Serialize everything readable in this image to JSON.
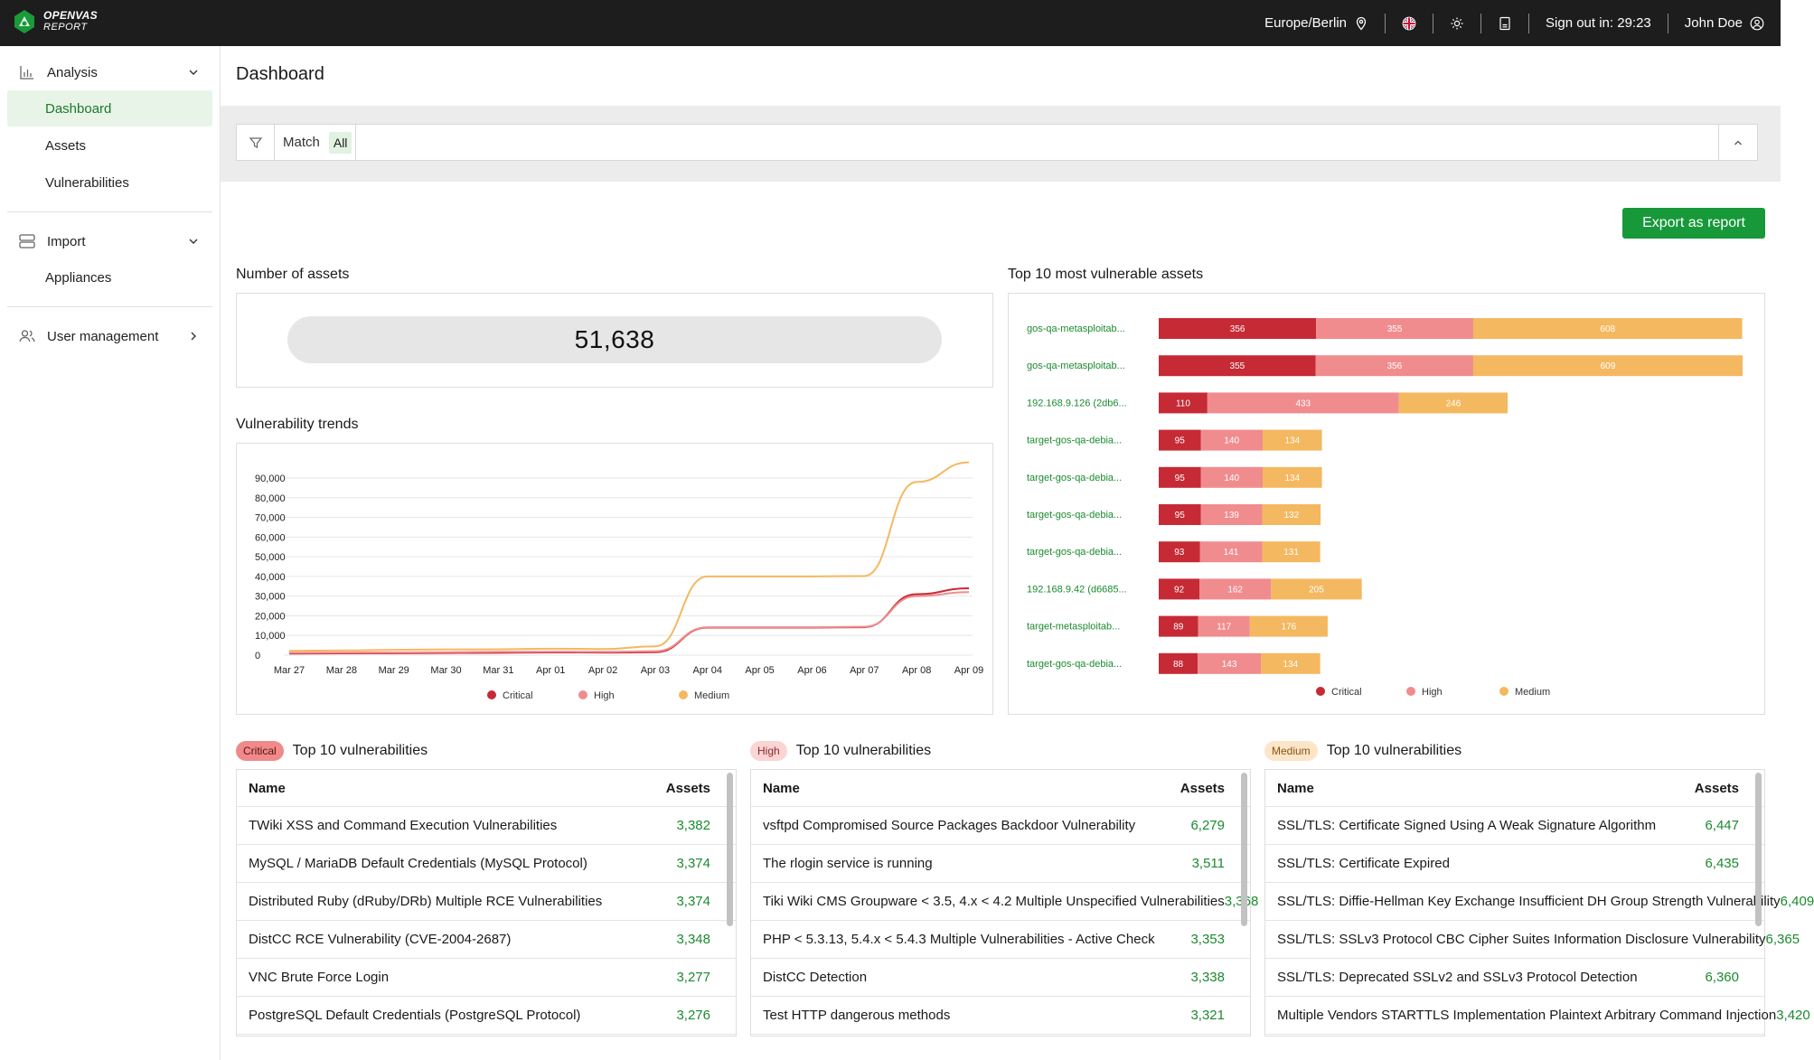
{
  "brand": {
    "line1": "OPENVAS",
    "line2": "REPORT"
  },
  "topbar": {
    "timezone": "Europe/Berlin",
    "signout": "Sign out in: 29:23",
    "user": "John Doe"
  },
  "sidebar": {
    "analysis": "Analysis",
    "dashboard": "Dashboard",
    "assets": "Assets",
    "vulnerabilities": "Vulnerabilities",
    "import": "Import",
    "appliances": "Appliances",
    "user_management": "User management"
  },
  "page": {
    "title": "Dashboard"
  },
  "filter": {
    "match_label": "Match",
    "match_value": "All"
  },
  "export_label": "Export as report",
  "assets_card": {
    "title": "Number of assets",
    "value": "51,638"
  },
  "colors": {
    "critical": "#c62a35",
    "high": "#f08c8e",
    "medium": "#f4b860",
    "accent": "#17993a"
  },
  "legend": {
    "critical": "Critical",
    "high": "High",
    "medium": "Medium"
  },
  "chart_data": [
    {
      "type": "line",
      "title": "Vulnerability trends",
      "x": [
        "Mar 27",
        "Mar 28",
        "Mar 29",
        "Mar 30",
        "Mar 31",
        "Apr 01",
        "Apr 02",
        "Apr 03",
        "Apr 04",
        "Apr 05",
        "Apr 06",
        "Apr 07",
        "Apr 08",
        "Apr 09"
      ],
      "yticks": [
        "0",
        "10,000",
        "20,000",
        "30,000",
        "40,000",
        "50,000",
        "60,000",
        "70,000",
        "80,000",
        "90,000"
      ],
      "ylim": [
        0,
        90000
      ],
      "series": [
        {
          "name": "Critical",
          "color": "#c62a35",
          "values": [
            800,
            900,
            1000,
            1100,
            1200,
            1400,
            1300,
            1500,
            14000,
            14000,
            14000,
            14200,
            31000,
            34000
          ]
        },
        {
          "name": "High",
          "color": "#f08c8e",
          "values": [
            1200,
            1300,
            1400,
            1500,
            1700,
            1800,
            1700,
            2000,
            14200,
            14200,
            14200,
            14400,
            30000,
            32000
          ]
        },
        {
          "name": "Medium",
          "color": "#f4b860",
          "values": [
            2200,
            2400,
            2700,
            2900,
            3000,
            3300,
            3100,
            4500,
            40000,
            40000,
            40000,
            40200,
            88000,
            98000
          ]
        }
      ]
    },
    {
      "type": "bar",
      "stacked": true,
      "orientation": "horizontal",
      "title": "Top 10 most vulnerable assets",
      "categories": [
        "gos-qa-metasploitab...",
        "gos-qa-metasploitab...",
        "192.168.9.126 (2db6...",
        "target-gos-qa-debia...",
        "target-gos-qa-debia...",
        "target-gos-qa-debia...",
        "target-gos-qa-debia...",
        "192.168.9.42 (d6685...",
        "target-metasploitab...",
        "target-gos-qa-debia..."
      ],
      "series": [
        {
          "name": "Critical",
          "color": "#c62a35",
          "values": [
            356,
            355,
            110,
            95,
            95,
            95,
            93,
            92,
            89,
            88
          ]
        },
        {
          "name": "High",
          "color": "#f08c8e",
          "values": [
            355,
            356,
            433,
            140,
            140,
            139,
            141,
            162,
            117,
            143
          ]
        },
        {
          "name": "Medium",
          "color": "#f4b860",
          "values": [
            608,
            609,
            246,
            134,
            134,
            132,
            131,
            205,
            176,
            134
          ]
        }
      ]
    }
  ],
  "tables": [
    {
      "badge": "Critical",
      "title": "Top 10 vulnerabilities",
      "col_name": "Name",
      "col_assets": "Assets",
      "rows": [
        {
          "name": "TWiki XSS and Command Execution Vulnerabilities",
          "count": "3,382"
        },
        {
          "name": "MySQL / MariaDB Default Credentials (MySQL Protocol)",
          "count": "3,374"
        },
        {
          "name": "Distributed Ruby (dRuby/DRb) Multiple RCE Vulnerabilities",
          "count": "3,374"
        },
        {
          "name": "DistCC RCE Vulnerability (CVE-2004-2687)",
          "count": "3,348"
        },
        {
          "name": "VNC Brute Force Login",
          "count": "3,277"
        },
        {
          "name": "PostgreSQL Default Credentials (PostgreSQL Protocol)",
          "count": "3,276"
        }
      ]
    },
    {
      "badge": "High",
      "title": "Top 10 vulnerabilities",
      "col_name": "Name",
      "col_assets": "Assets",
      "rows": [
        {
          "name": "vsftpd Compromised Source Packages Backdoor Vulnerability",
          "count": "6,279"
        },
        {
          "name": "The rlogin service is running",
          "count": "3,511"
        },
        {
          "name": "Tiki Wiki CMS Groupware < 3.5, 4.x < 4.2 Multiple Unspecified Vulnerabilities",
          "count": "3,368"
        },
        {
          "name": "PHP < 5.3.13, 5.4.x < 5.4.3 Multiple Vulnerabilities - Active Check",
          "count": "3,353"
        },
        {
          "name": "DistCC Detection",
          "count": "3,338"
        },
        {
          "name": "Test HTTP dangerous methods",
          "count": "3,321"
        }
      ]
    },
    {
      "badge": "Medium",
      "title": "Top 10 vulnerabilities",
      "col_name": "Name",
      "col_assets": "Assets",
      "rows": [
        {
          "name": "SSL/TLS: Certificate Signed Using A Weak Signature Algorithm",
          "count": "6,447"
        },
        {
          "name": "SSL/TLS: Certificate Expired",
          "count": "6,435"
        },
        {
          "name": "SSL/TLS: Diffie-Hellman Key Exchange Insufficient DH Group Strength Vulnerability",
          "count": "6,409"
        },
        {
          "name": "SSL/TLS: SSLv3 Protocol CBC Cipher Suites Information Disclosure Vulnerability",
          "count": "6,365"
        },
        {
          "name": "SSL/TLS: Deprecated SSLv2 and SSLv3 Protocol Detection",
          "count": "6,360"
        },
        {
          "name": "Multiple Vendors STARTTLS Implementation Plaintext Arbitrary Command Injection",
          "count": "3,420"
        }
      ]
    }
  ]
}
